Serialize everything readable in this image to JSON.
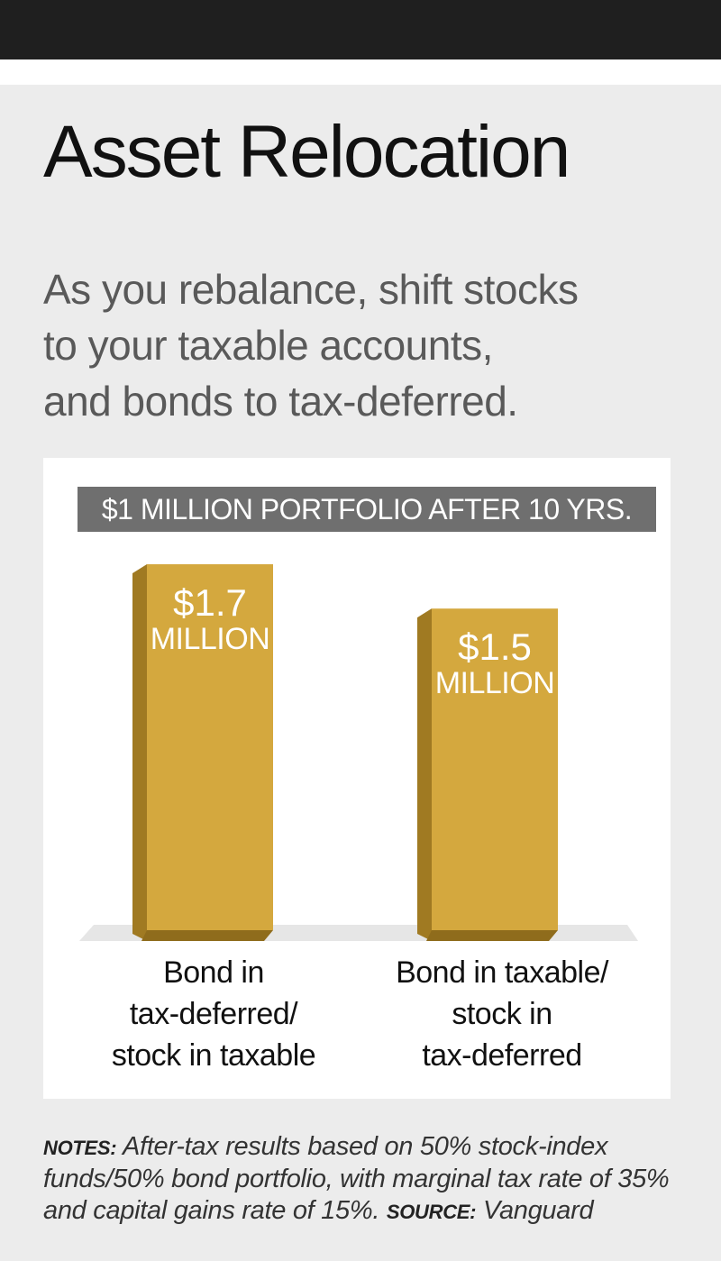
{
  "title": "Asset Relocation",
  "subtitle": "As you rebalance, shift stocks\nto your taxable accounts,\nand bonds to tax-deferred.",
  "chart_data": {
    "type": "bar",
    "title": "$1 MILLION PORTFOLIO AFTER 10 YRS.",
    "categories": [
      "Bond in\ntax-deferred/\nstock in taxable",
      "Bond in taxable/\nstock in\ntax-deferred"
    ],
    "values": [
      1.7,
      1.5
    ],
    "value_labels": [
      {
        "amount": "$1.7",
        "unit": "MILLION"
      },
      {
        "amount": "$1.5",
        "unit": "MILLION"
      }
    ],
    "unit": "millions of dollars",
    "ylim": [
      0,
      1.7
    ],
    "grid": false,
    "legend": "none",
    "bar_color": "#d4a83e"
  },
  "notes": {
    "notes_key": "Notes:",
    "notes_text": "After-tax results based on 50% stock-index funds/50% bond portfolio, with marginal tax rate of 35% and capital gains rate of 15%.",
    "source_key": "Source:",
    "source_text": "Vanguard"
  }
}
